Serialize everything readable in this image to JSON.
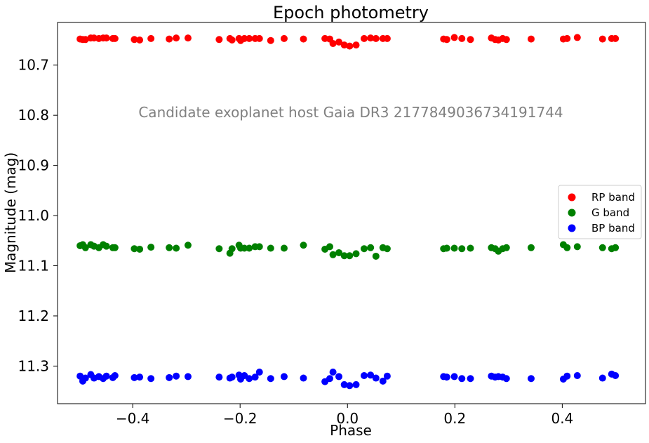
{
  "chart_data": {
    "type": "scatter",
    "title": "Epoch photometry",
    "xlabel": "Phase",
    "ylabel": "Magnitude (mag)",
    "xlim": [
      -0.54,
      0.555
    ],
    "ylim": [
      11.375,
      10.615
    ],
    "y_inverted": true,
    "xticks": [
      -0.4,
      -0.2,
      0.0,
      0.2,
      0.4
    ],
    "xtick_labels": [
      "−0.4",
      "−0.2",
      "0.0",
      "0.2",
      "0.4"
    ],
    "yticks": [
      10.7,
      10.8,
      10.9,
      11.0,
      11.1,
      11.2,
      11.3
    ],
    "ytick_labels": [
      "10.7",
      "10.8",
      "10.9",
      "11.0",
      "11.1",
      "11.2",
      "11.3"
    ],
    "annotation": "Candidate exoplanet host Gaia DR3 2177849036734191744",
    "legend_position": "center-right",
    "phase": [
      -0.498,
      -0.493,
      -0.488,
      -0.478,
      -0.472,
      -0.463,
      -0.455,
      -0.449,
      -0.437,
      -0.433,
      -0.397,
      -0.387,
      -0.366,
      -0.332,
      -0.319,
      -0.297,
      -0.239,
      -0.219,
      -0.215,
      -0.202,
      -0.199,
      -0.192,
      -0.183,
      -0.172,
      -0.164,
      -0.143,
      -0.118,
      -0.082,
      -0.042,
      -0.033,
      -0.027,
      -0.016,
      -0.006,
      0.004,
      0.016,
      0.031,
      0.043,
      0.053,
      0.066,
      0.074,
      0.179,
      0.185,
      0.199,
      0.213,
      0.229,
      0.268,
      0.275,
      0.281,
      0.289,
      0.296,
      0.342,
      0.402,
      0.409,
      0.428,
      0.475,
      0.492,
      0.499
    ],
    "series": [
      {
        "name": "RP band",
        "color": "#ff0000",
        "values": [
          10.648,
          10.649,
          10.649,
          10.646,
          10.646,
          10.647,
          10.646,
          10.646,
          10.647,
          10.647,
          10.649,
          10.65,
          10.647,
          10.648,
          10.646,
          10.646,
          10.649,
          10.647,
          10.65,
          10.647,
          10.651,
          10.647,
          10.647,
          10.647,
          10.647,
          10.651,
          10.647,
          10.648,
          10.647,
          10.648,
          10.657,
          10.654,
          10.66,
          10.662,
          10.66,
          10.647,
          10.646,
          10.647,
          10.647,
          10.647,
          10.648,
          10.649,
          10.645,
          10.647,
          10.649,
          10.646,
          10.649,
          10.65,
          10.647,
          10.649,
          10.648,
          10.648,
          10.647,
          10.645,
          10.648,
          10.647,
          10.647
        ]
      },
      {
        "name": "G band",
        "color": "#008000",
        "values": [
          11.06,
          11.058,
          11.064,
          11.058,
          11.061,
          11.064,
          11.058,
          11.061,
          11.064,
          11.064,
          11.066,
          11.067,
          11.063,
          11.064,
          11.065,
          11.059,
          11.066,
          11.075,
          11.066,
          11.059,
          11.065,
          11.065,
          11.065,
          11.062,
          11.062,
          11.065,
          11.065,
          11.059,
          11.067,
          11.062,
          11.078,
          11.074,
          11.08,
          11.08,
          11.076,
          11.066,
          11.064,
          11.081,
          11.064,
          11.066,
          11.066,
          11.065,
          11.065,
          11.066,
          11.065,
          11.064,
          11.066,
          11.071,
          11.066,
          11.064,
          11.064,
          11.058,
          11.064,
          11.062,
          11.064,
          11.066,
          11.064
        ]
      },
      {
        "name": "BP band",
        "color": "#0000ff",
        "values": [
          11.32,
          11.33,
          11.324,
          11.317,
          11.324,
          11.321,
          11.325,
          11.32,
          11.323,
          11.319,
          11.323,
          11.322,
          11.325,
          11.323,
          11.32,
          11.321,
          11.322,
          11.324,
          11.322,
          11.318,
          11.326,
          11.319,
          11.325,
          11.322,
          11.312,
          11.325,
          11.321,
          11.324,
          11.331,
          11.325,
          11.312,
          11.321,
          11.337,
          11.339,
          11.337,
          11.319,
          11.318,
          11.324,
          11.33,
          11.32,
          11.321,
          11.322,
          11.321,
          11.325,
          11.325,
          11.32,
          11.322,
          11.321,
          11.322,
          11.325,
          11.325,
          11.326,
          11.32,
          11.319,
          11.324,
          11.316,
          11.319
        ]
      }
    ]
  }
}
